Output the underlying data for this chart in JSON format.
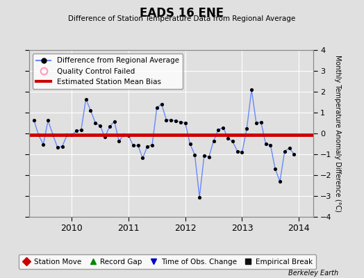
{
  "title": "EADS 16 ENE",
  "subtitle": "Difference of Station Temperature Data from Regional Average",
  "ylabel_right": "Monthly Temperature Anomaly Difference (°C)",
  "attribution": "Berkeley Earth",
  "ylim": [
    -4,
    4
  ],
  "yticks": [
    -4,
    -3,
    -2,
    -1,
    0,
    1,
    2,
    3,
    4
  ],
  "xlim_start": 2009.25,
  "xlim_end": 2014.25,
  "xticks": [
    2010,
    2011,
    2012,
    2013,
    2014
  ],
  "bias_line_y": -0.07,
  "line_color": "#6688ff",
  "marker_color": "#000000",
  "bias_color": "#cc0000",
  "background_color": "#e0e0e0",
  "grid_color": "#ffffff",
  "times": [
    2009.333,
    2009.417,
    2009.5,
    2009.583,
    2009.667,
    2009.75,
    2009.833,
    2009.917,
    2010.0,
    2010.083,
    2010.167,
    2010.25,
    2010.333,
    2010.417,
    2010.5,
    2010.583,
    2010.667,
    2010.75,
    2010.833,
    2010.917,
    2011.0,
    2011.083,
    2011.167,
    2011.25,
    2011.333,
    2011.417,
    2011.5,
    2011.583,
    2011.667,
    2011.75,
    2011.833,
    2011.917,
    2012.0,
    2012.083,
    2012.167,
    2012.25,
    2012.333,
    2012.417,
    2012.5,
    2012.583,
    2012.667,
    2012.75,
    2012.833,
    2012.917,
    2013.0,
    2013.083,
    2013.167,
    2013.25,
    2013.333,
    2013.417,
    2013.5,
    2013.583,
    2013.667,
    2013.75,
    2013.833,
    2013.917
  ],
  "values": [
    0.65,
    -0.08,
    -0.52,
    0.62,
    -0.05,
    -0.68,
    -0.62,
    -0.08,
    -0.08,
    0.12,
    0.18,
    1.65,
    1.1,
    0.5,
    0.38,
    -0.18,
    0.32,
    0.58,
    -0.38,
    -0.05,
    -0.1,
    -0.58,
    -0.58,
    -1.18,
    -0.62,
    -0.55,
    1.25,
    1.4,
    0.65,
    0.65,
    0.6,
    0.55,
    0.5,
    -0.5,
    -1.02,
    -3.05,
    -1.05,
    -1.12,
    -0.35,
    0.18,
    0.28,
    -0.22,
    -0.38,
    -0.85,
    -0.9,
    0.22,
    2.1,
    0.5,
    0.55,
    -0.5,
    -0.55,
    -1.7,
    -2.3,
    -0.85,
    -0.7,
    -1.0
  ],
  "legend_top": [
    {
      "label": "Difference from Regional Average",
      "line_color": "#0000cc",
      "marker_color": "#000000"
    },
    {
      "label": "Quality Control Failed",
      "marker_color": "#ff99bb"
    },
    {
      "label": "Estimated Station Mean Bias",
      "line_color": "#cc0000"
    }
  ],
  "legend_bottom": [
    {
      "label": "Station Move",
      "color": "#cc0000",
      "marker": "D"
    },
    {
      "label": "Record Gap",
      "color": "#008800",
      "marker": "^"
    },
    {
      "label": "Time of Obs. Change",
      "color": "#0000cc",
      "marker": "v"
    },
    {
      "label": "Empirical Break",
      "color": "#111111",
      "marker": "s"
    }
  ]
}
